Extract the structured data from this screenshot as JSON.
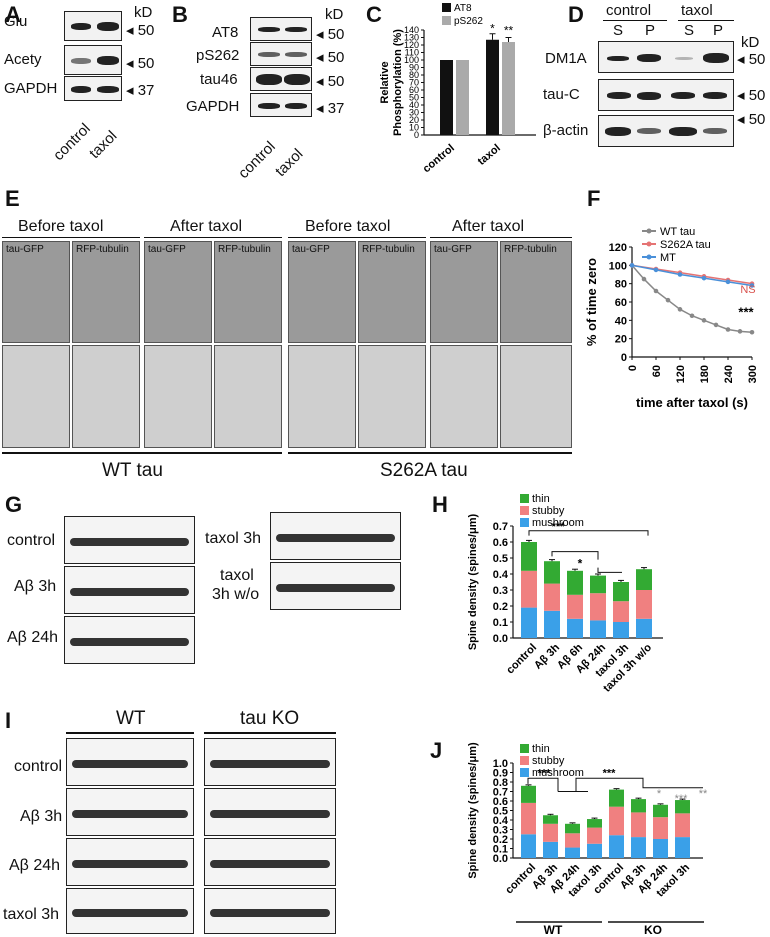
{
  "panels": {
    "A": {
      "label": "A",
      "rows": [
        "Glu",
        "Acety",
        "GAPDH"
      ],
      "kd_unit": "kD",
      "kd": [
        "50",
        "50",
        "37"
      ],
      "lanes": [
        "control",
        "taxol"
      ]
    },
    "B": {
      "label": "B",
      "rows": [
        "AT8",
        "pS262",
        "tau46",
        "GAPDH"
      ],
      "kd_unit": "kD",
      "kd": [
        "50",
        "50",
        "50",
        "37"
      ],
      "lanes": [
        "control",
        "taxol"
      ]
    },
    "C": {
      "label": "C"
    },
    "D": {
      "label": "D",
      "groups": [
        "control",
        "taxol"
      ],
      "fractions": [
        "S",
        "P",
        "S",
        "P"
      ],
      "rows": [
        "DM1A",
        "tau-C",
        "β-actin"
      ],
      "kd_unit": "kD",
      "kd": [
        "50",
        "50",
        "50"
      ]
    },
    "E": {
      "label": "E",
      "groups": [
        "Before taxol",
        "After taxol",
        "Before taxol",
        "After taxol"
      ],
      "channels": [
        "tau-GFP",
        "RFP-tubulin",
        "tau-GFP",
        "RFP-tubulin",
        "tau-GFP",
        "RFP-tubulin",
        "tau-GFP",
        "RFP-tubulin"
      ],
      "conditions": [
        "WT tau",
        "S262A tau"
      ]
    },
    "F": {
      "label": "F"
    },
    "G": {
      "label": "G",
      "rows_left": [
        "control",
        "Aβ 3h",
        "Aβ 24h"
      ],
      "rows_right": [
        "taxol 3h",
        "taxol",
        "3h w/o"
      ]
    },
    "H": {
      "label": "H"
    },
    "I": {
      "label": "I",
      "columns": [
        "WT",
        "tau KO"
      ],
      "rows": [
        "control",
        "Aβ 3h",
        "Aβ 24h",
        "taxol 3h"
      ]
    },
    "J": {
      "label": "J"
    }
  },
  "chart_data": [
    {
      "id": "C",
      "type": "bar",
      "ylabel": "Relative Phosphorylation (%)",
      "categories": [
        "control",
        "taxol"
      ],
      "series": [
        {
          "name": "AT8",
          "color": "#111111",
          "values": [
            100,
            127
          ],
          "err": [
            0,
            8
          ]
        },
        {
          "name": "pS262",
          "color": "#aaaaaa",
          "values": [
            100,
            124
          ],
          "err": [
            0,
            6
          ]
        }
      ],
      "ylim": [
        0,
        140
      ],
      "yticks": [
        0,
        10,
        20,
        30,
        40,
        50,
        60,
        70,
        80,
        90,
        100,
        110,
        120,
        130,
        140
      ],
      "annotations": [
        "*",
        "**"
      ]
    },
    {
      "id": "F",
      "type": "scatter",
      "xlabel": "time after taxol (s)",
      "ylabel": "% of time zero",
      "xticks": [
        0,
        60,
        120,
        180,
        240,
        300
      ],
      "yticks": [
        0,
        20,
        40,
        60,
        80,
        100,
        120
      ],
      "xlim": [
        0,
        300
      ],
      "ylim": [
        0,
        120
      ],
      "series": [
        {
          "name": "WT tau",
          "color": "#888888",
          "x": [
            0,
            30,
            60,
            90,
            120,
            150,
            180,
            210,
            240,
            270,
            300
          ],
          "y": [
            100,
            85,
            72,
            62,
            52,
            45,
            40,
            35,
            30,
            28,
            27
          ]
        },
        {
          "name": "S262A tau",
          "color": "#e57373",
          "x": [
            0,
            60,
            120,
            180,
            240,
            300
          ],
          "y": [
            100,
            96,
            92,
            88,
            84,
            80
          ]
        },
        {
          "name": "MT",
          "color": "#4a90d9",
          "x": [
            0,
            60,
            120,
            180,
            240,
            300
          ],
          "y": [
            100,
            95,
            90,
            86,
            82,
            78
          ]
        }
      ],
      "annotations": [
        "NS",
        "***"
      ]
    },
    {
      "id": "H",
      "type": "bar",
      "ylabel": "Spine density (spines/μm)",
      "stacked": true,
      "categories": [
        "control",
        "Aβ 3h",
        "Aβ 6h",
        "Aβ 24h",
        "taxol 3h",
        "taxol 3h w/o"
      ],
      "series": [
        {
          "name": "mushroom",
          "color": "#3aa0e8",
          "values": [
            0.19,
            0.17,
            0.12,
            0.11,
            0.1,
            0.12
          ]
        },
        {
          "name": "stubby",
          "color": "#f08080",
          "values": [
            0.23,
            0.17,
            0.15,
            0.17,
            0.13,
            0.18
          ]
        },
        {
          "name": "thin",
          "color": "#33aa33",
          "values": [
            0.18,
            0.14,
            0.15,
            0.11,
            0.12,
            0.13
          ]
        }
      ],
      "ylim": [
        0,
        0.7
      ],
      "yticks": [
        0.0,
        0.1,
        0.2,
        0.3,
        0.4,
        0.5,
        0.6,
        0.7
      ],
      "annotations": [
        "***",
        "*"
      ]
    },
    {
      "id": "J",
      "type": "bar",
      "ylabel": "Spine density (spines/μm)",
      "stacked": true,
      "categories": [
        "control",
        "Aβ 3h",
        "Aβ 24h",
        "taxol 3h",
        "control",
        "Aβ 3h",
        "Aβ 24h",
        "taxol 3h"
      ],
      "groups": [
        "WT",
        "KO"
      ],
      "series": [
        {
          "name": "mushroom",
          "color": "#3aa0e8",
          "values": [
            0.25,
            0.17,
            0.11,
            0.15,
            0.24,
            0.22,
            0.2,
            0.22
          ]
        },
        {
          "name": "stubby",
          "color": "#f08080",
          "values": [
            0.33,
            0.19,
            0.15,
            0.17,
            0.3,
            0.26,
            0.23,
            0.25
          ]
        },
        {
          "name": "thin",
          "color": "#33aa33",
          "values": [
            0.18,
            0.09,
            0.1,
            0.09,
            0.18,
            0.14,
            0.13,
            0.14
          ]
        }
      ],
      "ylim": [
        0,
        1.0
      ],
      "yticks": [
        0.0,
        0.1,
        0.2,
        0.3,
        0.4,
        0.5,
        0.6,
        0.7,
        0.8,
        0.9,
        1.0
      ],
      "annotations": [
        "***",
        "***",
        "*",
        "***",
        "**"
      ]
    }
  ]
}
